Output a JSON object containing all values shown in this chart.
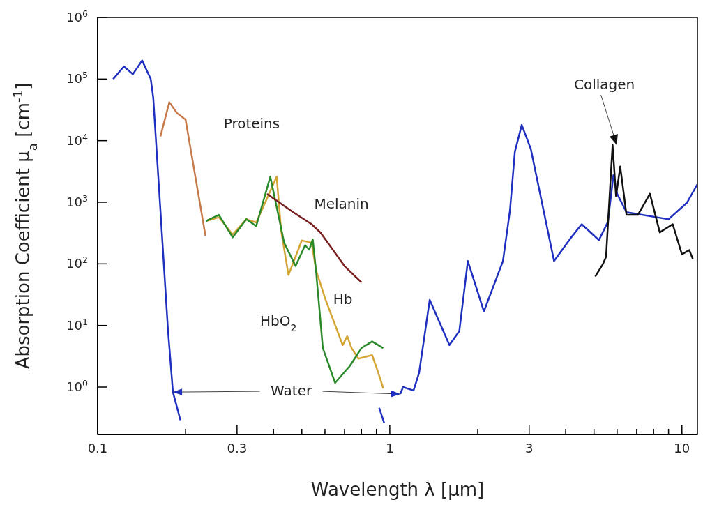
{
  "chart_data": {
    "type": "line",
    "xlabel": "Wavelength λ [μm]",
    "ylabel": "Absorption Coefficient μ$_{a}$ [cm$^{-1}$]",
    "log": "xy",
    "grid": false,
    "legend": false,
    "marker": "none",
    "line_style": "solid",
    "xlim": [
      0.1,
      11.3
    ],
    "ylim": [
      0.17,
      1000000
    ],
    "xticks": [
      0.1,
      {
        "value": 0.2,
        "label": null
      },
      0.3,
      {
        "value": 0.4,
        "label": null
      },
      {
        "value": 0.5,
        "label": null
      },
      {
        "value": 0.6,
        "label": null
      },
      {
        "value": 0.7,
        "label": null
      },
      {
        "value": 0.8,
        "label": null
      },
      {
        "value": 0.9,
        "label": null
      },
      1,
      {
        "value": 2,
        "label": null
      },
      3,
      {
        "value": 4,
        "label": null
      },
      {
        "value": 5,
        "label": null
      },
      {
        "value": 6,
        "label": null
      },
      {
        "value": 7,
        "label": null
      },
      {
        "value": 8,
        "label": null
      },
      {
        "value": 9,
        "label": null
      },
      10
    ],
    "yticks": [
      {
        "value": 1,
        "label": "10$^{0}$"
      },
      {
        "value": 10,
        "label": "10$^{1}$"
      },
      {
        "value": 100,
        "label": "10$^{2}$"
      },
      {
        "value": 1000,
        "label": "10$^{3}$"
      },
      {
        "value": 10000,
        "label": "10$^{4}$"
      },
      {
        "value": 100000,
        "label": "10$^{5}$"
      },
      {
        "value": 1000000,
        "label": "10$^{6}$"
      }
    ],
    "series": [
      {
        "name": "Water",
        "color": "#1f2fbf",
        "x": [
          0.113,
          0.123,
          0.132,
          0.142,
          0.152,
          0.155,
          0.164,
          0.174,
          0.181,
          0.192,
          0.207,
          0.5,
          0.891,
          0.92,
          0.957,
          0.98,
          1.0,
          1.057,
          1.086,
          1.11,
          1.206,
          1.26,
          1.37,
          1.6,
          1.73,
          1.85,
          2.1,
          2.44,
          2.58,
          2.68,
          2.83,
          3.04,
          3.65,
          4.16,
          4.54,
          5.2,
          5.58,
          5.83,
          6.0,
          6.46,
          9.0,
          10.4,
          11.3
        ],
        "values": [
          100000,
          160000,
          120000,
          200000,
          100000,
          50000,
          750,
          8.8,
          0.83,
          0.29,
          null,
          null,
          null,
          0.46,
          0.26,
          null,
          null,
          null,
          0.77,
          1.0,
          0.88,
          1.7,
          26,
          4.8,
          8.1,
          111,
          16.9,
          111,
          750,
          6600,
          18000,
          7300,
          111,
          262,
          440,
          243,
          480,
          2750,
          1370,
          690,
          530,
          980,
          1970
        ]
      },
      {
        "name": "Proteins",
        "color": "#c87a4a",
        "x": [
          0.164,
          0.176,
          0.187,
          0.2,
          0.234
        ],
        "values": [
          11700,
          42000,
          28000,
          22000,
          284
        ]
      },
      {
        "name": "Hb",
        "color": "#d4a534",
        "x": [
          0.235,
          0.26,
          0.29,
          0.323,
          0.349,
          0.365,
          0.41,
          0.425,
          0.45,
          0.5,
          0.54,
          0.56,
          0.605,
          0.69,
          0.715,
          0.74,
          0.78,
          0.87,
          0.91,
          0.95
        ],
        "values": [
          495,
          570,
          300,
          530,
          470,
          750,
          2600,
          340,
          66,
          240,
          220,
          77,
          25,
          4.8,
          6.7,
          4.3,
          2.9,
          3.3,
          1.8,
          0.95
        ]
      },
      {
        "name": "HbO$_{2}$",
        "color": "#2a8a2a",
        "x": [
          0.235,
          0.26,
          0.29,
          0.323,
          0.349,
          0.39,
          0.435,
          0.476,
          0.513,
          0.53,
          0.545,
          0.56,
          0.59,
          0.65,
          0.73,
          0.8,
          0.87,
          0.95
        ],
        "values": [
          495,
          625,
          270,
          530,
          410,
          2600,
          220,
          92,
          200,
          170,
          250,
          71,
          4.3,
          1.17,
          2.2,
          4.3,
          5.5,
          4.3
        ]
      },
      {
        "name": "Melanin",
        "color": "#7a1f1f",
        "x": [
          0.38,
          0.467,
          0.54,
          0.58,
          0.7,
          0.8
        ],
        "values": [
          1370,
          690,
          440,
          320,
          92,
          50
        ]
      },
      {
        "name": "Collagen",
        "color": "#111111",
        "x": [
          5.05,
          5.37,
          5.5,
          5.79,
          5.95,
          6.15,
          6.46,
          7.07,
          7.77,
          8.4,
          9.3,
          10.0,
          10.6,
          10.9
        ],
        "values": [
          62,
          100,
          130,
          8500,
          1260,
          3800,
          625,
          625,
          1370,
          325,
          440,
          143,
          167,
          120
        ]
      }
    ]
  }
}
